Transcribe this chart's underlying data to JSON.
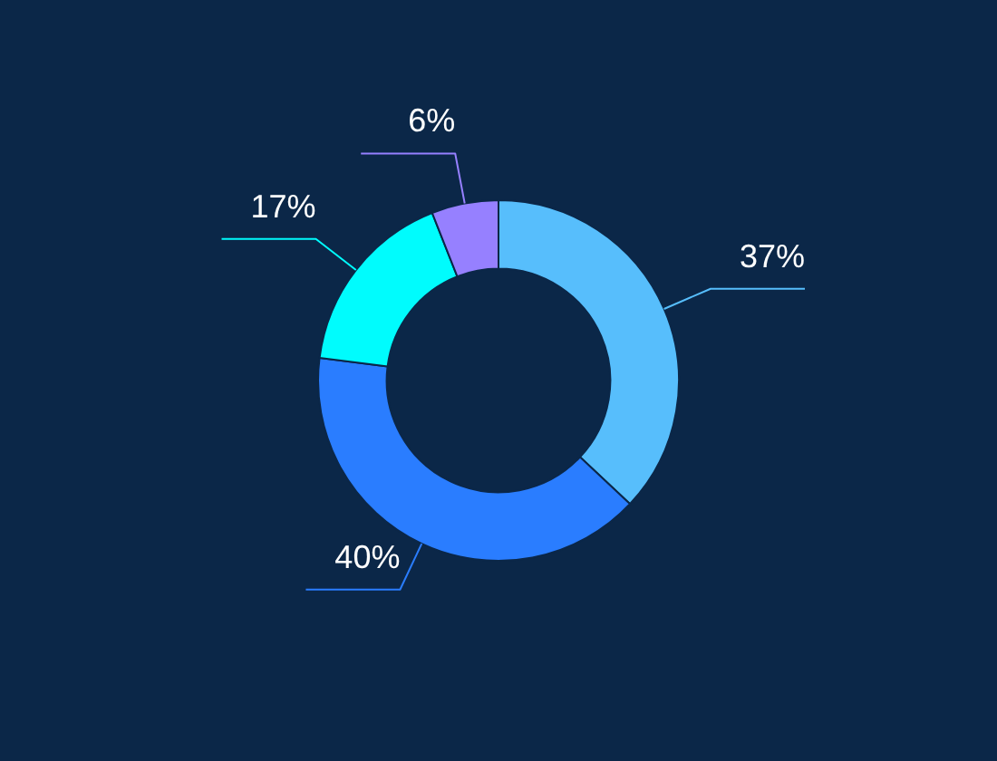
{
  "chart_data": {
    "type": "donut",
    "categories": [
      null,
      null,
      null,
      null
    ],
    "values": [
      37,
      40,
      17,
      6
    ],
    "colors": [
      "#57befc",
      "#2a7dff",
      "#00fcfd",
      "#9680ff"
    ],
    "value_labels": [
      "37%",
      "40%",
      "17%",
      "6%"
    ],
    "legend": false
  }
}
